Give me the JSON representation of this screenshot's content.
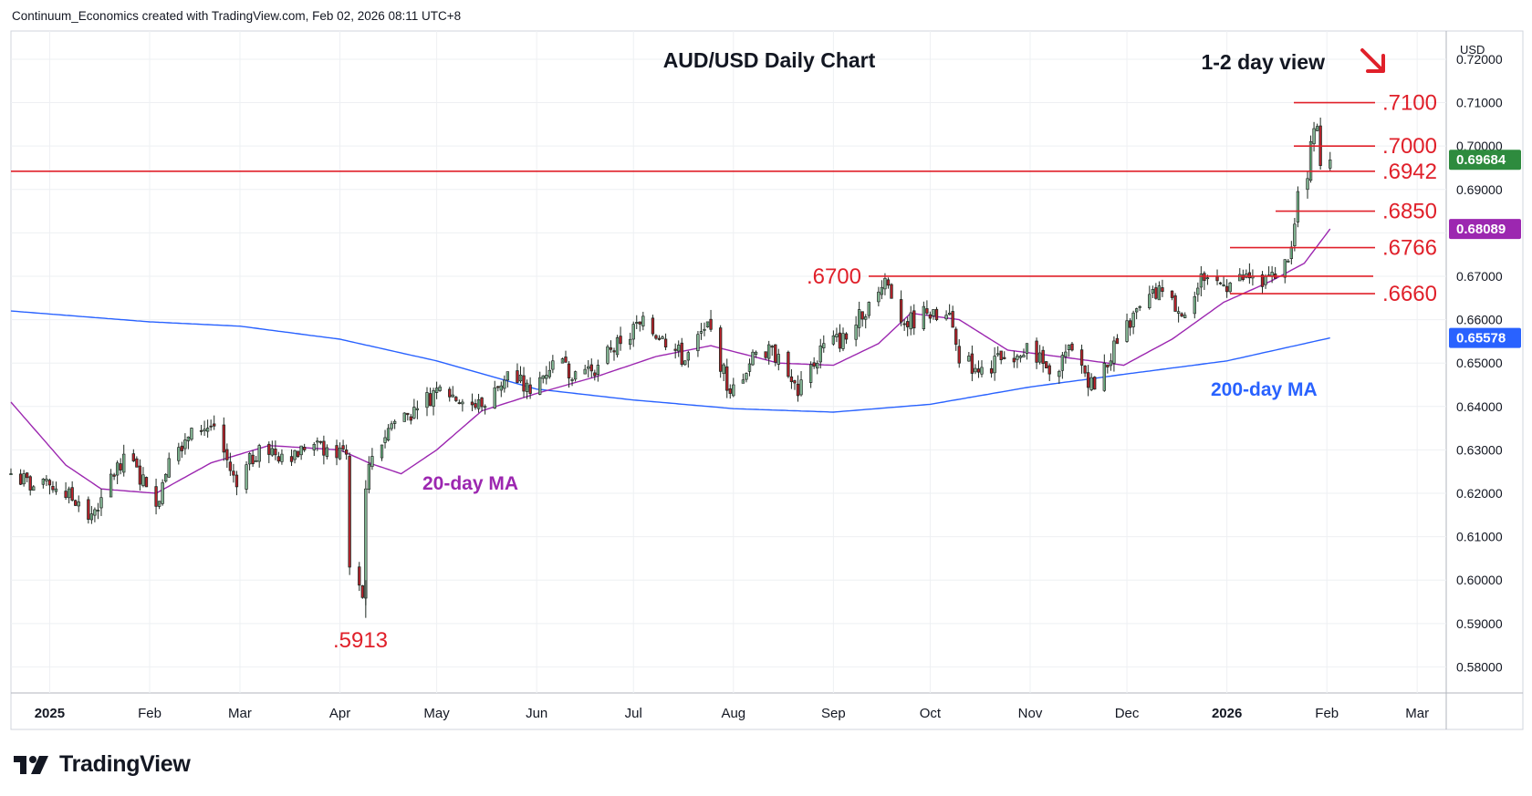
{
  "attribution": "Continuum_Economics created with TradingView.com, Feb 02, 2026 08:11 UTC+8",
  "branding": "TradingView",
  "colors": {
    "bull": "#2f8f4e",
    "bear": "#c0212c",
    "level_line": "#e0202a",
    "ma20": "#9c27b0",
    "ma200": "#2962ff",
    "last_price_badge": "#2e8b3e",
    "ma20_badge": "#9c27b0",
    "ma200_badge": "#2962ff",
    "grid": "#eef0f3"
  },
  "chart_data": {
    "type": "candlestick",
    "title": "AUD/USD Daily Chart",
    "view_label": "1-2 day view",
    "view_arrow": "down-right",
    "currency": "USD",
    "ylim": [
      0.574,
      0.7265
    ],
    "y_ticks": [
      "0.72000",
      "0.71000",
      "0.70000",
      "0.69000",
      "0.68000",
      "0.67000",
      "0.66000",
      "0.65000",
      "0.64000",
      "0.63000",
      "0.62000",
      "0.61000",
      "0.60000",
      "0.59000",
      "0.58000"
    ],
    "x_start": "2024-12-20",
    "x_end": "2026-03-10",
    "x_labels": [
      {
        "date": "2025-01-01",
        "label": "2025",
        "bold": true
      },
      {
        "date": "2025-02-01",
        "label": "Feb"
      },
      {
        "date": "2025-03-01",
        "label": "Mar"
      },
      {
        "date": "2025-04-01",
        "label": "Apr"
      },
      {
        "date": "2025-05-01",
        "label": "May"
      },
      {
        "date": "2025-06-01",
        "label": "Jun"
      },
      {
        "date": "2025-07-01",
        "label": "Jul"
      },
      {
        "date": "2025-08-01",
        "label": "Aug"
      },
      {
        "date": "2025-09-01",
        "label": "Sep"
      },
      {
        "date": "2025-10-01",
        "label": "Oct"
      },
      {
        "date": "2025-11-01",
        "label": "Nov"
      },
      {
        "date": "2025-12-01",
        "label": "Dec"
      },
      {
        "date": "2026-01-01",
        "label": "2026",
        "bold": true
      },
      {
        "date": "2026-02-01",
        "label": "Feb"
      },
      {
        "date": "2026-03-01",
        "label": "Mar"
      }
    ],
    "close_anchors": [
      [
        "2024-12-20",
        0.6245
      ],
      [
        "2024-12-27",
        0.6215
      ],
      [
        "2025-01-03",
        0.621
      ],
      [
        "2025-01-10",
        0.618
      ],
      [
        "2025-01-13",
        0.614
      ],
      [
        "2025-01-17",
        0.619
      ],
      [
        "2025-01-24",
        0.629
      ],
      [
        "2025-01-31",
        0.6215
      ],
      [
        "2025-02-03",
        0.617
      ],
      [
        "2025-02-07",
        0.628
      ],
      [
        "2025-02-14",
        0.635
      ],
      [
        "2025-02-21",
        0.6355
      ],
      [
        "2025-02-28",
        0.6215
      ],
      [
        "2025-03-07",
        0.631
      ],
      [
        "2025-03-14",
        0.629
      ],
      [
        "2025-03-21",
        0.63
      ],
      [
        "2025-03-28",
        0.6305
      ],
      [
        "2025-04-03",
        0.629
      ],
      [
        "2025-04-04",
        0.603
      ],
      [
        "2025-04-08",
        0.596
      ],
      [
        "2025-04-09",
        0.621
      ],
      [
        "2025-04-11",
        0.6285
      ],
      [
        "2025-04-17",
        0.636
      ],
      [
        "2025-04-25",
        0.6395
      ],
      [
        "2025-05-02",
        0.6445
      ],
      [
        "2025-05-09",
        0.641
      ],
      [
        "2025-05-16",
        0.64
      ],
      [
        "2025-05-23",
        0.648
      ],
      [
        "2025-05-30",
        0.643
      ],
      [
        "2025-06-06",
        0.6505
      ],
      [
        "2025-06-13",
        0.648
      ],
      [
        "2025-06-20",
        0.6495
      ],
      [
        "2025-06-27",
        0.6545
      ],
      [
        "2025-07-03",
        0.659
      ],
      [
        "2025-07-10",
        0.656
      ],
      [
        "2025-07-17",
        0.6505
      ],
      [
        "2025-07-24",
        0.6595
      ],
      [
        "2025-07-31",
        0.643
      ],
      [
        "2025-08-08",
        0.6525
      ],
      [
        "2025-08-15",
        0.652
      ],
      [
        "2025-08-21",
        0.6425
      ],
      [
        "2025-08-29",
        0.6545
      ],
      [
        "2025-09-05",
        0.6555
      ],
      [
        "2025-09-12",
        0.664
      ],
      [
        "2025-09-17",
        0.6695
      ],
      [
        "2025-09-23",
        0.659
      ],
      [
        "2025-09-30",
        0.6615
      ],
      [
        "2025-10-03",
        0.66
      ],
      [
        "2025-10-07",
        0.6615
      ],
      [
        "2025-10-10",
        0.65
      ],
      [
        "2025-10-17",
        0.649
      ],
      [
        "2025-10-24",
        0.651
      ],
      [
        "2025-10-31",
        0.6545
      ],
      [
        "2025-11-07",
        0.6475
      ],
      [
        "2025-11-14",
        0.653
      ],
      [
        "2025-11-21",
        0.644
      ],
      [
        "2025-11-28",
        0.6545
      ],
      [
        "2025-12-05",
        0.663
      ],
      [
        "2025-12-12",
        0.6665
      ],
      [
        "2025-12-19",
        0.661
      ],
      [
        "2025-12-24",
        0.6705
      ],
      [
        "2025-12-31",
        0.668
      ],
      [
        "2026-01-09",
        0.67
      ],
      [
        "2026-01-16",
        0.6695
      ],
      [
        "2026-01-20",
        0.6735
      ],
      [
        "2026-01-22",
        0.682
      ],
      [
        "2026-01-23",
        0.6895
      ],
      [
        "2026-01-26",
        0.6925
      ],
      [
        "2026-01-27",
        0.701
      ],
      [
        "2026-01-28",
        0.704
      ],
      [
        "2026-01-29",
        0.7045
      ],
      [
        "2026-01-30",
        0.6955
      ],
      [
        "2026-02-02",
        0.6968
      ]
    ],
    "support_resistance": [
      {
        "value": 0.71,
        "label": ".7100"
      },
      {
        "value": 0.7,
        "label": ".7000"
      },
      {
        "value": 0.6942,
        "label": ".6942",
        "full_width": true
      },
      {
        "value": 0.685,
        "label": ".6850"
      },
      {
        "value": 0.6766,
        "label": ".6766"
      },
      {
        "value": 0.67,
        "label": ".6700",
        "left_label": true
      },
      {
        "value": 0.666,
        "label": ".6660"
      }
    ],
    "low_annotation": {
      "value": 0.5913,
      "label": ".5913"
    },
    "ma20": {
      "name": "20-day MA",
      "value": 0.68089,
      "badge": "0.68089",
      "anchors": [
        [
          "2024-12-20",
          0.641
        ],
        [
          "2025-01-06",
          0.6265
        ],
        [
          "2025-01-17",
          0.621
        ],
        [
          "2025-02-03",
          0.62
        ],
        [
          "2025-02-20",
          0.627
        ],
        [
          "2025-03-10",
          0.631
        ],
        [
          "2025-04-01",
          0.63
        ],
        [
          "2025-04-10",
          0.627
        ],
        [
          "2025-04-20",
          0.6245
        ],
        [
          "2025-05-01",
          0.63
        ],
        [
          "2025-05-15",
          0.639
        ],
        [
          "2025-06-01",
          0.643
        ],
        [
          "2025-06-20",
          0.647
        ],
        [
          "2025-07-08",
          0.6515
        ],
        [
          "2025-07-25",
          0.654
        ],
        [
          "2025-08-15",
          0.65
        ],
        [
          "2025-09-01",
          0.6495
        ],
        [
          "2025-09-15",
          0.6545
        ],
        [
          "2025-09-25",
          0.6615
        ],
        [
          "2025-10-10",
          0.66
        ],
        [
          "2025-10-25",
          0.653
        ],
        [
          "2025-11-15",
          0.651
        ],
        [
          "2025-11-30",
          0.6495
        ],
        [
          "2025-12-15",
          0.6555
        ],
        [
          "2025-12-31",
          0.664
        ],
        [
          "2026-01-15",
          0.669
        ],
        [
          "2026-01-25",
          0.673
        ],
        [
          "2026-02-02",
          0.6809
        ]
      ]
    },
    "ma200": {
      "name": "200-day MA",
      "value": 0.65578,
      "badge": "0.65578",
      "anchors": [
        [
          "2024-12-20",
          0.662
        ],
        [
          "2025-02-01",
          0.6595
        ],
        [
          "2025-03-01",
          0.6585
        ],
        [
          "2025-04-01",
          0.6555
        ],
        [
          "2025-05-01",
          0.6505
        ],
        [
          "2025-06-01",
          0.644
        ],
        [
          "2025-07-01",
          0.6415
        ],
        [
          "2025-08-01",
          0.6395
        ],
        [
          "2025-09-01",
          0.6387
        ],
        [
          "2025-10-01",
          0.6405
        ],
        [
          "2025-11-01",
          0.6445
        ],
        [
          "2025-12-01",
          0.6475
        ],
        [
          "2026-01-01",
          0.6505
        ],
        [
          "2026-02-02",
          0.6558
        ]
      ]
    },
    "last_price": {
      "value": 0.69684,
      "badge": "0.69684"
    }
  }
}
